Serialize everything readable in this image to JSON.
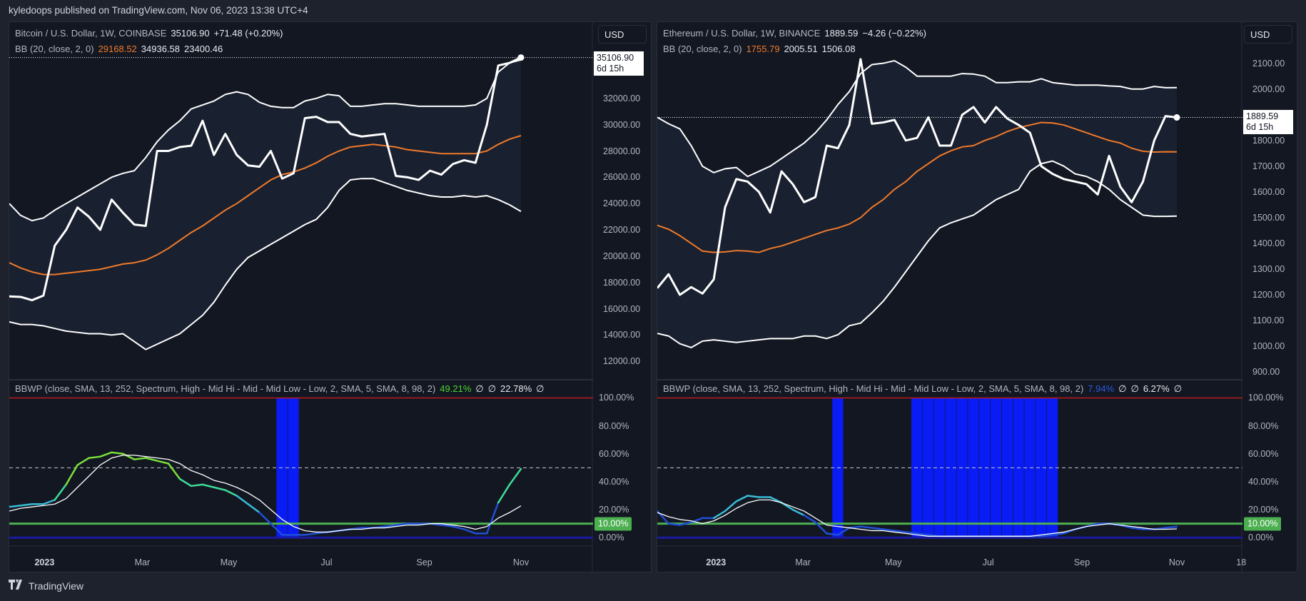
{
  "header": {
    "publish_line": "kyledoops published on TradingView.com, Nov 06, 2023 13:38 UTC+4"
  },
  "footer": {
    "brand": "TradingView",
    "logo_text": "TV"
  },
  "colors": {
    "background": "#131722",
    "price_line": "#ffffff",
    "bb_band": "#ffffff",
    "bb_basis": "#f07a2a",
    "bb_fill": "#19202f",
    "bbwp_ma": "#ffffff",
    "highlight": "#0a1cf5",
    "level_100": "#b71c1c",
    "level_50": "#c8c8c8",
    "level_10": "#4caf50",
    "level_0": "#1a1aa0",
    "spectrum": {
      "low": "#1f4fd6",
      "mid_low": "#38bcd6",
      "mid_hi": "#3ddc97",
      "high": "#79df3a"
    }
  },
  "charts": [
    {
      "title": {
        "symbol": "Bitcoin / U.S. Dollar, 1W, COINBASE",
        "last": "35106.90",
        "change": "+71.48 (+0.20%)"
      },
      "bb": {
        "label": "BB (20, close, 2, 0)",
        "basis": "29168.52",
        "upper": "34936.58",
        "lower": "23400.46"
      },
      "currency": "USD",
      "price_tag": {
        "price": "35106.90",
        "countdown": "6d 15h"
      },
      "bbwp_legend": {
        "label": "BBWP (close, SMA, 13, 252, Spectrum, High - Mid Hi - Mid - Mid Low - Low, 2, SMA, 5, SMA, 8, 98, 2)",
        "value": "49.21%",
        "value_color": "#4cd92f",
        "na1": "∅",
        "na2": "∅",
        "ma": "22.78%",
        "na3": "∅"
      },
      "level_tag": "10.00%"
    },
    {
      "title": {
        "symbol": "Ethereum / U.S. Dollar, 1W, BINANCE",
        "last": "1889.59",
        "change": "−4.26 (−0.22%)"
      },
      "bb": {
        "label": "BB (20, close, 2, 0)",
        "basis": "1755.79",
        "upper": "2005.51",
        "lower": "1506.08"
      },
      "currency": "USD",
      "price_tag": {
        "price": "1889.59",
        "countdown": "6d 15h"
      },
      "bbwp_legend": {
        "label": "BBWP (close, SMA, 13, 252, Spectrum, High - Mid Hi - Mid - Mid Low - Low, 2, SMA, 5, SMA, 8, 98, 2)",
        "value": "7.94%",
        "value_color": "#2b5be0",
        "na1": "∅",
        "na2": "∅",
        "ma": "6.27%",
        "na3": "∅"
      },
      "level_tag": "10.00%"
    }
  ],
  "chart_data": [
    {
      "type": "line",
      "interval": "1W",
      "ylim": [
        10600,
        37800
      ],
      "price_ticks": [
        "32000.00",
        "30000.00",
        "28000.00",
        "26000.00",
        "24000.00",
        "22000.00",
        "20000.00",
        "18000.00",
        "16000.00",
        "14000.00",
        "12000.00"
      ],
      "price_tick_values": [
        32000,
        30000,
        28000,
        26000,
        24000,
        22000,
        20000,
        18000,
        16000,
        14000,
        12000
      ],
      "time_ticks": [
        "2023",
        "Mar",
        "May",
        "Jul",
        "Sep",
        "Nov"
      ],
      "close": [
        16940,
        16900,
        16650,
        17000,
        20800,
        22000,
        23700,
        23000,
        22000,
        24300,
        23300,
        22400,
        22300,
        28000,
        28000,
        28300,
        28400,
        30300,
        27700,
        29300,
        27700,
        26900,
        26800,
        28000,
        25900,
        26300,
        30500,
        30600,
        30200,
        30200,
        29300,
        29100,
        29200,
        29300,
        26100,
        26000,
        25800,
        26500,
        26200,
        27000,
        27300,
        27100,
        30000,
        34500,
        34700,
        35106.9
      ],
      "bb_upper": [
        24000,
        23100,
        22700,
        22900,
        23500,
        24000,
        24500,
        25000,
        25500,
        26000,
        26300,
        26500,
        27500,
        28700,
        29600,
        30300,
        31200,
        31500,
        31800,
        32300,
        32500,
        32300,
        31700,
        31400,
        31300,
        31300,
        31800,
        32000,
        32300,
        32200,
        31400,
        31400,
        31500,
        31600,
        31600,
        31500,
        31400,
        31400,
        31400,
        31400,
        31400,
        31500,
        32000,
        34000,
        34700,
        34936.58
      ],
      "bb_basis": [
        19500,
        19100,
        18800,
        18600,
        18600,
        18700,
        18800,
        18900,
        19000,
        19200,
        19400,
        19500,
        19700,
        20100,
        20600,
        21200,
        21800,
        22300,
        22900,
        23500,
        24000,
        24600,
        25200,
        25800,
        26200,
        26400,
        26700,
        27100,
        27600,
        28000,
        28300,
        28400,
        28500,
        28400,
        28300,
        28100,
        28000,
        27900,
        27800,
        27800,
        27800,
        27800,
        28000,
        28500,
        28900,
        29168.52
      ],
      "bb_lower": [
        15000,
        14800,
        14800,
        14700,
        14500,
        14300,
        14200,
        14100,
        14100,
        14000,
        14100,
        13500,
        12900,
        13300,
        13700,
        14100,
        14800,
        15500,
        16500,
        17800,
        19000,
        19900,
        20400,
        20900,
        21400,
        21900,
        22400,
        22800,
        23700,
        25000,
        25800,
        25900,
        25900,
        25600,
        25300,
        25000,
        24800,
        24600,
        24500,
        24500,
        24600,
        24500,
        24600,
        24300,
        23900,
        23400.46
      ],
      "indicator": {
        "ylim": [
          -6,
          113
        ],
        "ticks": [
          "100.00%",
          "80.00%",
          "60.00%",
          "40.00%",
          "20.00%",
          "0.00%"
        ],
        "tick_values": [
          100,
          80,
          60,
          40,
          20,
          0
        ],
        "levels": {
          "top": 100,
          "mid": 50,
          "signal": 10,
          "bottom": 0
        },
        "bbwp": [
          22,
          23,
          24,
          24,
          27,
          38,
          52,
          57,
          58,
          61,
          60,
          56,
          57,
          55,
          53,
          42,
          37,
          38,
          36,
          34,
          30,
          24,
          18,
          10,
          2,
          2,
          2,
          3,
          4,
          5,
          6,
          7,
          7,
          8,
          9,
          10,
          10,
          10,
          9,
          8,
          6,
          3,
          3,
          25,
          38,
          49.21
        ],
        "bbwp_ma": [
          19,
          21,
          22,
          23,
          24,
          28,
          36,
          44,
          52,
          57,
          59,
          59,
          58,
          57,
          56,
          53,
          48,
          45,
          41,
          39,
          36,
          32,
          27,
          20,
          13,
          8,
          5,
          4,
          4,
          5,
          6,
          6,
          7,
          7,
          8,
          9,
          9,
          10,
          10,
          9,
          8,
          6,
          8,
          14,
          18,
          22.78
        ],
        "highlight_bars": [
          24,
          25
        ]
      }
    },
    {
      "type": "line",
      "interval": "1W",
      "ylim": [
        870,
        2260
      ],
      "price_ticks": [
        "2100.00",
        "2000.00",
        "1800.00",
        "1700.00",
        "1600.00",
        "1500.00",
        "1400.00",
        "1300.00",
        "1200.00",
        "1100.00",
        "1000.00",
        "900.00"
      ],
      "price_tick_values": [
        2100,
        2000,
        1800,
        1700,
        1600,
        1500,
        1400,
        1300,
        1200,
        1100,
        1000,
        900
      ],
      "time_ticks": [
        "2023",
        "Mar",
        "May",
        "Jul",
        "Sep",
        "Nov",
        "18"
      ],
      "close": [
        1226,
        1280,
        1200,
        1230,
        1205,
        1260,
        1540,
        1650,
        1640,
        1600,
        1520,
        1680,
        1630,
        1560,
        1580,
        1780,
        1770,
        1860,
        2116,
        1865,
        1870,
        1880,
        1800,
        1810,
        1890,
        1780,
        1780,
        1900,
        1930,
        1870,
        1930,
        1885,
        1860,
        1830,
        1700,
        1670,
        1650,
        1640,
        1630,
        1590,
        1740,
        1620,
        1560,
        1640,
        1800,
        1895,
        1889.59
      ],
      "bb_upper": [
        1890,
        1865,
        1845,
        1780,
        1700,
        1675,
        1690,
        1695,
        1660,
        1680,
        1700,
        1730,
        1760,
        1790,
        1830,
        1880,
        1940,
        1990,
        2060,
        2095,
        2100,
        2110,
        2085,
        2050,
        2050,
        2050,
        2050,
        2060,
        2058,
        2050,
        2025,
        2025,
        2028,
        2028,
        2040,
        2025,
        2020,
        2015,
        2015,
        2015,
        2012,
        2010,
        2000,
        2000,
        2010,
        2005,
        2005.51
      ],
      "bb_basis": [
        1470,
        1455,
        1430,
        1400,
        1370,
        1365,
        1367,
        1372,
        1370,
        1365,
        1380,
        1390,
        1405,
        1420,
        1435,
        1450,
        1460,
        1475,
        1500,
        1540,
        1570,
        1610,
        1640,
        1680,
        1710,
        1740,
        1760,
        1775,
        1780,
        1800,
        1815,
        1835,
        1850,
        1860,
        1870,
        1868,
        1860,
        1845,
        1830,
        1815,
        1800,
        1790,
        1770,
        1758,
        1755,
        1756,
        1755.79
      ],
      "bb_lower": [
        1050,
        1040,
        1010,
        995,
        1020,
        1025,
        1020,
        1015,
        1020,
        1025,
        1030,
        1030,
        1030,
        1040,
        1040,
        1030,
        1045,
        1080,
        1090,
        1130,
        1175,
        1230,
        1290,
        1350,
        1410,
        1460,
        1480,
        1495,
        1510,
        1540,
        1570,
        1590,
        1610,
        1680,
        1710,
        1720,
        1700,
        1670,
        1660,
        1640,
        1610,
        1570,
        1540,
        1510,
        1505,
        1505,
        1506.08
      ],
      "indicator": {
        "ylim": [
          -6,
          113
        ],
        "ticks": [
          "100.00%",
          "80.00%",
          "60.00%",
          "40.00%",
          "20.00%",
          "0.00%"
        ],
        "tick_values": [
          100,
          80,
          60,
          40,
          20,
          0
        ],
        "levels": {
          "top": 100,
          "mid": 50,
          "signal": 10,
          "bottom": 0
        },
        "bbwp": [
          19,
          10,
          9,
          11,
          14,
          14,
          19,
          26,
          30,
          29,
          29,
          25,
          20,
          16,
          11,
          3,
          2,
          7,
          8,
          7,
          6,
          5,
          4,
          3,
          2,
          1,
          1,
          1,
          1,
          1,
          1,
          1,
          1,
          1,
          1,
          2,
          3,
          6,
          8,
          10,
          10,
          9,
          7,
          6,
          6,
          7,
          7.94
        ],
        "bbwp_ma": [
          18,
          15,
          13,
          12,
          10,
          12,
          16,
          21,
          25,
          27,
          27,
          25,
          22,
          19,
          14,
          9,
          8,
          7,
          6,
          5,
          5,
          4,
          3,
          2,
          1,
          1,
          1,
          1,
          1,
          1,
          1,
          1,
          1,
          1,
          2,
          3,
          4,
          6,
          8,
          9,
          10,
          9,
          8,
          7,
          6,
          6,
          6.27
        ],
        "highlight_bars": [
          16,
          23,
          24,
          25,
          26,
          27,
          28,
          29,
          30,
          31,
          32,
          33,
          34,
          35
        ]
      }
    }
  ]
}
